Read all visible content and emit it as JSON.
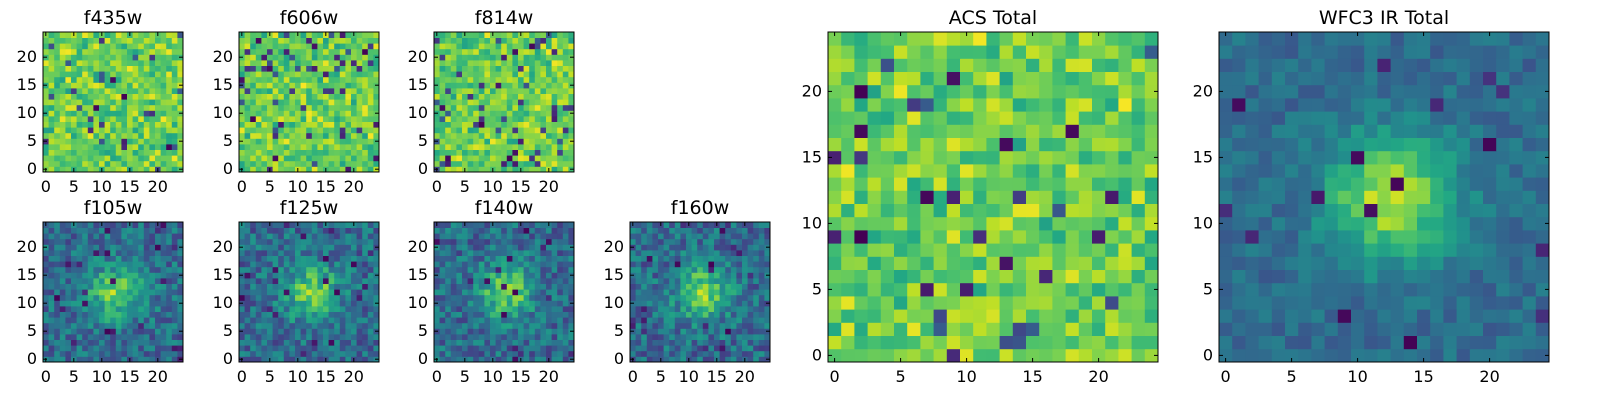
{
  "chart_data": {
    "type": "heatmap",
    "colormap": "viridis",
    "panels": [
      {
        "id": "f435w",
        "title": "f435w",
        "pattern": "noise",
        "seed": 11,
        "xticks": [
          0,
          5,
          10,
          15,
          20
        ],
        "yticks": [
          0,
          5,
          10,
          15,
          20
        ],
        "grid_size": 25,
        "xlim": [
          0,
          24
        ],
        "ylim": [
          0,
          24
        ]
      },
      {
        "id": "f606w",
        "title": "f606w",
        "pattern": "noise",
        "seed": 23,
        "xticks": [
          0,
          5,
          10,
          15,
          20
        ],
        "yticks": [
          0,
          5,
          10,
          15,
          20
        ],
        "grid_size": 25,
        "xlim": [
          0,
          24
        ],
        "ylim": [
          0,
          24
        ]
      },
      {
        "id": "f814w",
        "title": "f814w",
        "pattern": "noise",
        "seed": 37,
        "xticks": [
          0,
          5,
          10,
          15,
          20
        ],
        "yticks": [
          0,
          5,
          10,
          15,
          20
        ],
        "grid_size": 25,
        "xlim": [
          0,
          24
        ],
        "ylim": [
          0,
          24
        ]
      },
      {
        "id": "f105w",
        "title": "f105w",
        "pattern": "source",
        "seed": 41,
        "xticks": [
          0,
          5,
          10,
          15,
          20
        ],
        "yticks": [
          0,
          5,
          10,
          15,
          20
        ],
        "grid_size": 25,
        "xlim": [
          0,
          24
        ],
        "ylim": [
          0,
          24
        ]
      },
      {
        "id": "f125w",
        "title": "f125w",
        "pattern": "source",
        "seed": 53,
        "xticks": [
          0,
          5,
          10,
          15,
          20
        ],
        "yticks": [
          0,
          5,
          10,
          15,
          20
        ],
        "grid_size": 25,
        "xlim": [
          0,
          24
        ],
        "ylim": [
          0,
          24
        ]
      },
      {
        "id": "f140w",
        "title": "f140w",
        "pattern": "source",
        "seed": 67,
        "xticks": [
          0,
          5,
          10,
          15,
          20
        ],
        "yticks": [
          0,
          5,
          10,
          15,
          20
        ],
        "grid_size": 25,
        "xlim": [
          0,
          24
        ],
        "ylim": [
          0,
          24
        ]
      },
      {
        "id": "f160w",
        "title": "f160w",
        "pattern": "source",
        "seed": 79,
        "xticks": [
          0,
          5,
          10,
          15,
          20
        ],
        "yticks": [
          0,
          5,
          10,
          15,
          20
        ],
        "grid_size": 25,
        "xlim": [
          0,
          24
        ],
        "ylim": [
          0,
          24
        ]
      },
      {
        "id": "acs-total",
        "title": "ACS Total",
        "pattern": "noise",
        "seed": 97,
        "xticks": [
          0,
          5,
          10,
          15,
          20
        ],
        "yticks": [
          0,
          5,
          10,
          15,
          20
        ],
        "grid_size": 25,
        "xlim": [
          0,
          24
        ],
        "ylim": [
          0,
          24
        ]
      },
      {
        "id": "wfc3-ir-total",
        "title": "WFC3 IR Total",
        "pattern": "source-smooth",
        "seed": 113,
        "xticks": [
          0,
          5,
          10,
          15,
          20
        ],
        "yticks": [
          0,
          5,
          10,
          15,
          20
        ],
        "grid_size": 25,
        "xlim": [
          0,
          24
        ],
        "ylim": [
          0,
          24
        ]
      }
    ]
  }
}
